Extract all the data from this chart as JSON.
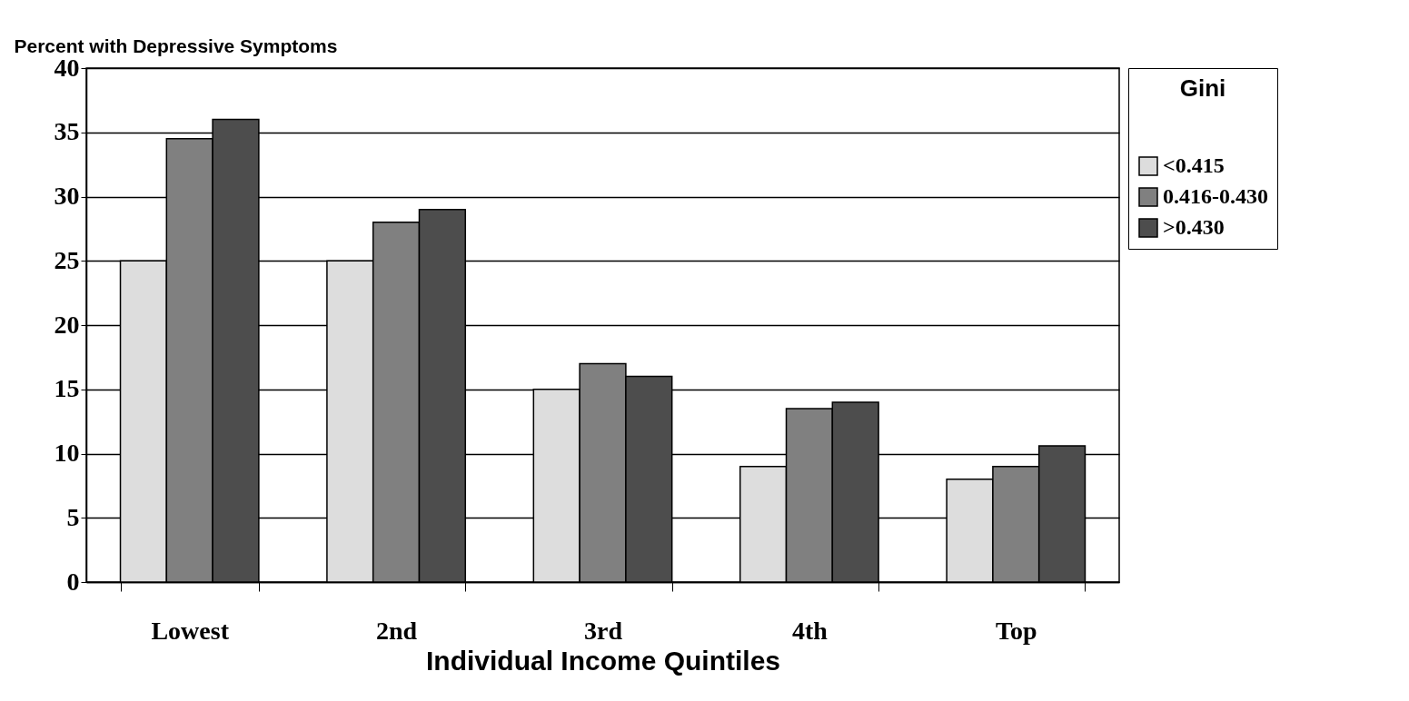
{
  "chart_data": {
    "type": "bar",
    "ylabel": "Percent with Depressive Symptoms",
    "xlabel": "Individual Income Quintiles",
    "legend_title": "Gini",
    "categories": [
      "Lowest",
      "2nd",
      "3rd",
      "4th",
      "Top"
    ],
    "series": [
      {
        "name": "<0.415",
        "color": "#dddddd",
        "values": [
          25,
          25,
          15,
          9,
          8
        ]
      },
      {
        "name": "0.416-0.430",
        "color": "#808080",
        "values": [
          34.5,
          28,
          17,
          13.5,
          9
        ]
      },
      {
        "name": ">0.430",
        "color": "#4d4d4d",
        "values": [
          36,
          29,
          16,
          14,
          10.6
        ]
      }
    ],
    "ylim": [
      0,
      40
    ],
    "yticks": [
      0,
      5,
      10,
      15,
      20,
      25,
      30,
      35,
      40
    ],
    "grid": "y",
    "legend": "right"
  }
}
